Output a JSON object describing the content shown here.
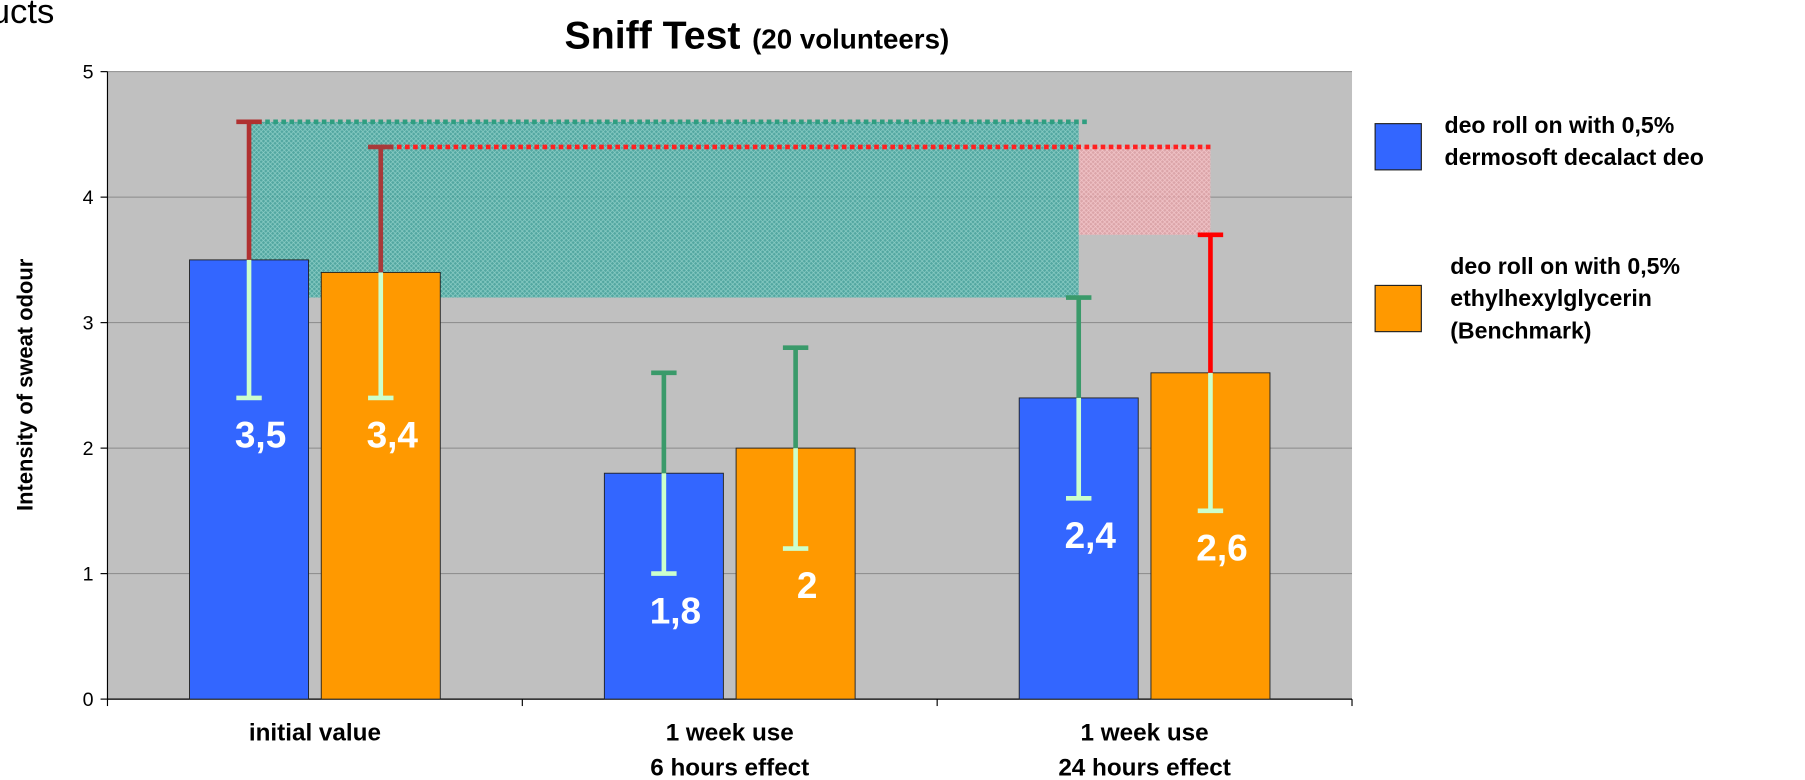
{
  "page_fragment": "ucts",
  "chart_data": {
    "type": "bar",
    "title": "Sniff Test",
    "subtitle": "(20 volunteers)",
    "y_label": "Intensity of sweat odour",
    "categories": [
      "initial value",
      "1 week use\n6 hours effect",
      "1 week use\n24 hours effect"
    ],
    "ylim": [
      0,
      5
    ],
    "yticks": [
      0,
      1,
      2,
      3,
      4,
      5
    ],
    "grid": true,
    "legend": "right",
    "series": [
      {
        "name": "deo roll on with 0,5%\ndermosoft decalact deo",
        "color": "#3366ff",
        "values": [
          3.5,
          1.8,
          2.4
        ],
        "value_labels": [
          "3,5",
          "1,8",
          "2,4"
        ],
        "errors": [
          1.1,
          0.8,
          0.8
        ],
        "error_colors": [
          "#b03030",
          "#3a9a6a",
          "#3a9a6a"
        ]
      },
      {
        "name": "deo roll on with 0,5%\nethylhexylglycerin\n(Benchmark)",
        "color": "#ff9900",
        "values": [
          3.4,
          2.0,
          2.6
        ],
        "value_labels": [
          "3,4",
          "2",
          "2,6"
        ],
        "errors": [
          1.0,
          0.8,
          1.1
        ],
        "error_colors": [
          "#a83a3a",
          "#3a9a6a",
          "#ff0000"
        ]
      }
    ],
    "error_inner_color": "#ccffcc"
  }
}
